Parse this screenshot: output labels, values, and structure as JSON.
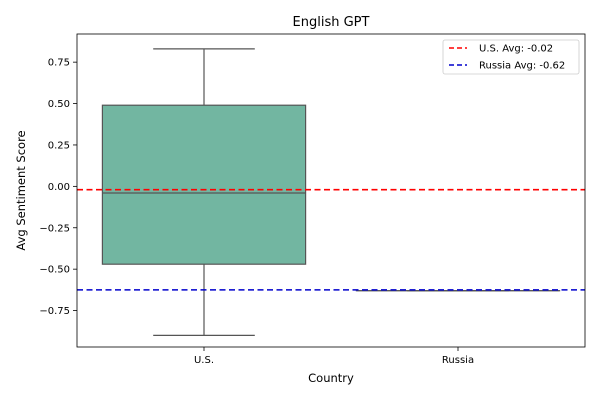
{
  "chart_data": {
    "type": "box",
    "title": "English GPT",
    "xlabel": "Country",
    "ylabel": "Avg Sentiment Score",
    "categories": [
      "U.S.",
      "Russia"
    ],
    "ylim": [
      -0.97,
      0.92
    ],
    "yticks": [
      0.75,
      0.5,
      0.25,
      0.0,
      -0.25,
      -0.5,
      -0.75
    ],
    "ytick_labels": [
      "0.75",
      "0.50",
      "0.25",
      "0.00",
      "−0.25",
      "−0.50",
      "−0.75"
    ],
    "boxes": [
      {
        "category": "U.S.",
        "whisker_low": -0.9,
        "q1": -0.47,
        "median": -0.04,
        "q3": 0.49,
        "whisker_high": 0.83,
        "color": "#72b6a1"
      },
      {
        "category": "Russia",
        "whisker_low": -0.63,
        "q1": -0.63,
        "median": -0.63,
        "q3": -0.63,
        "whisker_high": -0.63,
        "color": "#fc8d62"
      }
    ],
    "reference_lines": [
      {
        "label": "U.S. Avg: -0.02",
        "value": -0.02,
        "color": "#ff0000",
        "style": "dashed"
      },
      {
        "label": "Russia Avg: -0.62",
        "value": -0.625,
        "color": "#0000cc",
        "style": "dashed"
      }
    ],
    "legend_position": "top-right",
    "grid": false
  }
}
